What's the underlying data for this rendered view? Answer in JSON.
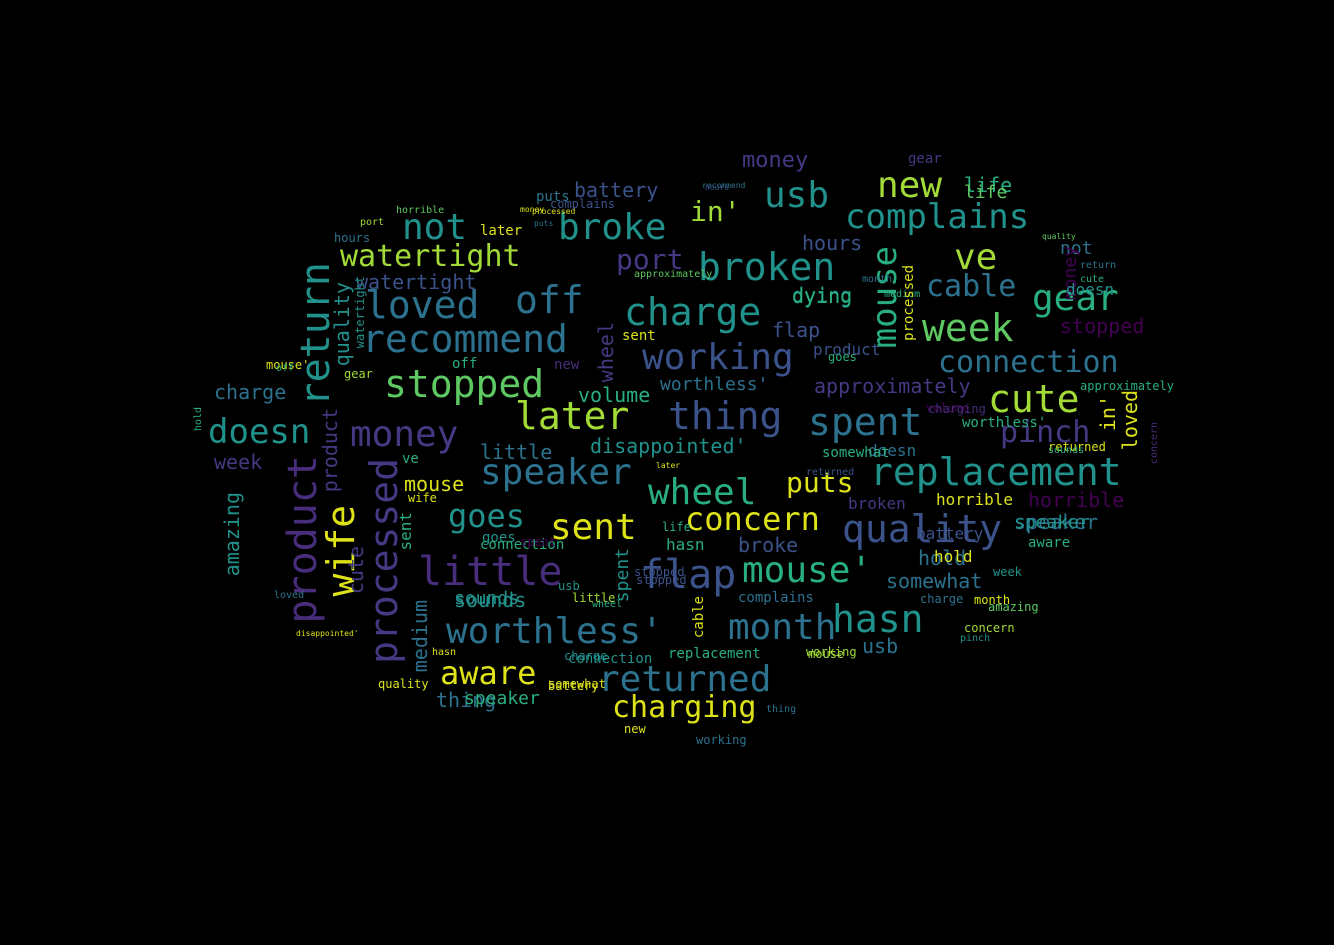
{
  "palette": {
    "yellow": "#dde318",
    "lime": "#a2da37",
    "green": "#5ec962",
    "teal": "#29af7f",
    "cyan": "#21918c",
    "steel": "#2c728e",
    "blue": "#3b528b",
    "indigo": "#443983",
    "purple": "#472d7b",
    "violet": "#440154"
  },
  "words": [
    "product",
    "wife",
    "return",
    "processed",
    "little",
    "worthless'",
    "flap",
    "mouse'",
    "month",
    "hasn",
    "returned",
    "charging",
    "aware",
    "quality",
    "replacement",
    "wheel",
    "concern",
    "sent",
    "speaker",
    "goes",
    "later",
    "money",
    "stopped",
    "recommend",
    "thing",
    "spent",
    "working",
    "charge",
    "broken",
    "broke",
    "watertight",
    "not",
    "loved",
    "off",
    "usb",
    "new",
    "complains",
    "ve",
    "cable",
    "gear",
    "week",
    "cute",
    "connection",
    "pinch",
    "doesn",
    "mouse",
    "port",
    "in'",
    "battery",
    "life",
    "hours",
    "dying",
    "approximately",
    "disappointed'",
    "volume",
    "little",
    "medium",
    "sounds",
    "amazing",
    "horrible",
    "somewhat",
    "hold",
    "speaker",
    "worthless'",
    "puts",
    "money",
    "stopped",
    "dying",
    "wheel",
    "product",
    "watertight",
    "quality",
    "charge",
    "doesn",
    "week",
    "cute",
    "sent",
    "spent",
    "sounds",
    "connection",
    "quality",
    "thing",
    "battery",
    "mouse",
    "wife",
    "cable",
    "usb",
    "goes",
    "complains",
    "replacement",
    "working",
    "hasn",
    "broken",
    "broke",
    "hold",
    "charge",
    "month",
    "week",
    "concern",
    "returned",
    "horrible",
    "aware",
    "speaker",
    "gear",
    "flap",
    "stopped",
    "in'",
    "not",
    "money",
    "processed",
    "gear",
    "hours",
    "later",
    "puts",
    "life",
    "loved",
    "recommend",
    "port",
    "pinch",
    "wheel",
    "volume",
    "off",
    "ve",
    "new",
    "doesn",
    "usb",
    "mouse'",
    "worthless'",
    "somewhat",
    "month",
    "returned",
    "return",
    "approximately",
    "medium",
    "amazing",
    "cute",
    "product",
    "processed",
    "loved",
    "disappointed'",
    "concern",
    "hasn",
    "hold",
    "charging",
    "sent",
    "sounds",
    "life",
    "battery",
    "connection",
    "thing",
    "goes",
    "little",
    "somewhat",
    "charge",
    "speaker",
    "complains",
    "horrible",
    "working",
    "mouse",
    "new",
    "approximately",
    "watertight",
    "quality",
    "off",
    "stopped",
    "hours",
    "later",
    "spent",
    "puts",
    "money"
  ]
}
